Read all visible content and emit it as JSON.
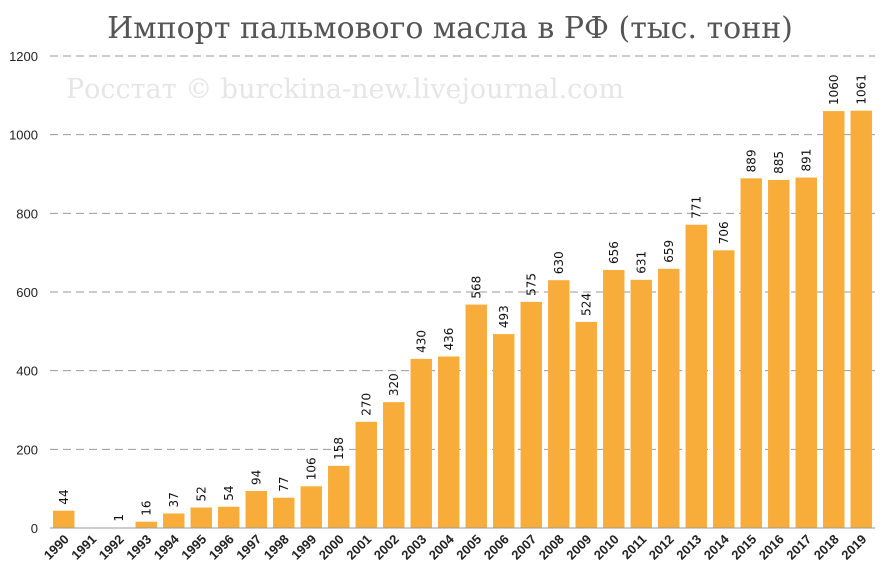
{
  "chart_data": {
    "type": "bar",
    "title": "Импорт пальмового масла в РФ (тыс. тонн)",
    "watermark": "Росстат © burckina-new.livejournal.com",
    "xlabel": "",
    "ylabel": "",
    "ylim": [
      0,
      1200
    ],
    "yticks": [
      0,
      200,
      400,
      600,
      800,
      1000,
      1200
    ],
    "grid": true,
    "legend": "none",
    "colors": {
      "bar": "#f8ad3b",
      "grid": "#9a9a9a",
      "title": "#555555"
    },
    "categories": [
      "1990",
      "1991",
      "1992",
      "1993",
      "1994",
      "1995",
      "1996",
      "1997",
      "1998",
      "1999",
      "2000",
      "2001",
      "2002",
      "2003",
      "2004",
      "2005",
      "2006",
      "2007",
      "2008",
      "2009",
      "2010",
      "2011",
      "2012",
      "2013",
      "2014",
      "2015",
      "2016",
      "2017",
      "2018",
      "2019"
    ],
    "values": [
      44,
      null,
      1,
      16,
      37,
      52,
      54,
      94,
      77,
      106,
      158,
      270,
      320,
      430,
      436,
      568,
      493,
      575,
      630,
      524,
      656,
      631,
      659,
      771,
      706,
      889,
      885,
      891,
      1060,
      1061
    ],
    "labels": [
      "44",
      "",
      "1",
      "16",
      "37",
      "52",
      "54",
      "94",
      "77",
      "106",
      "158",
      "270",
      "320",
      "430",
      "436",
      "568",
      "493",
      "575",
      "630",
      "524",
      "656",
      "631",
      "659",
      "771",
      "706",
      "889",
      "885",
      "891",
      "1060",
      "1061"
    ]
  }
}
